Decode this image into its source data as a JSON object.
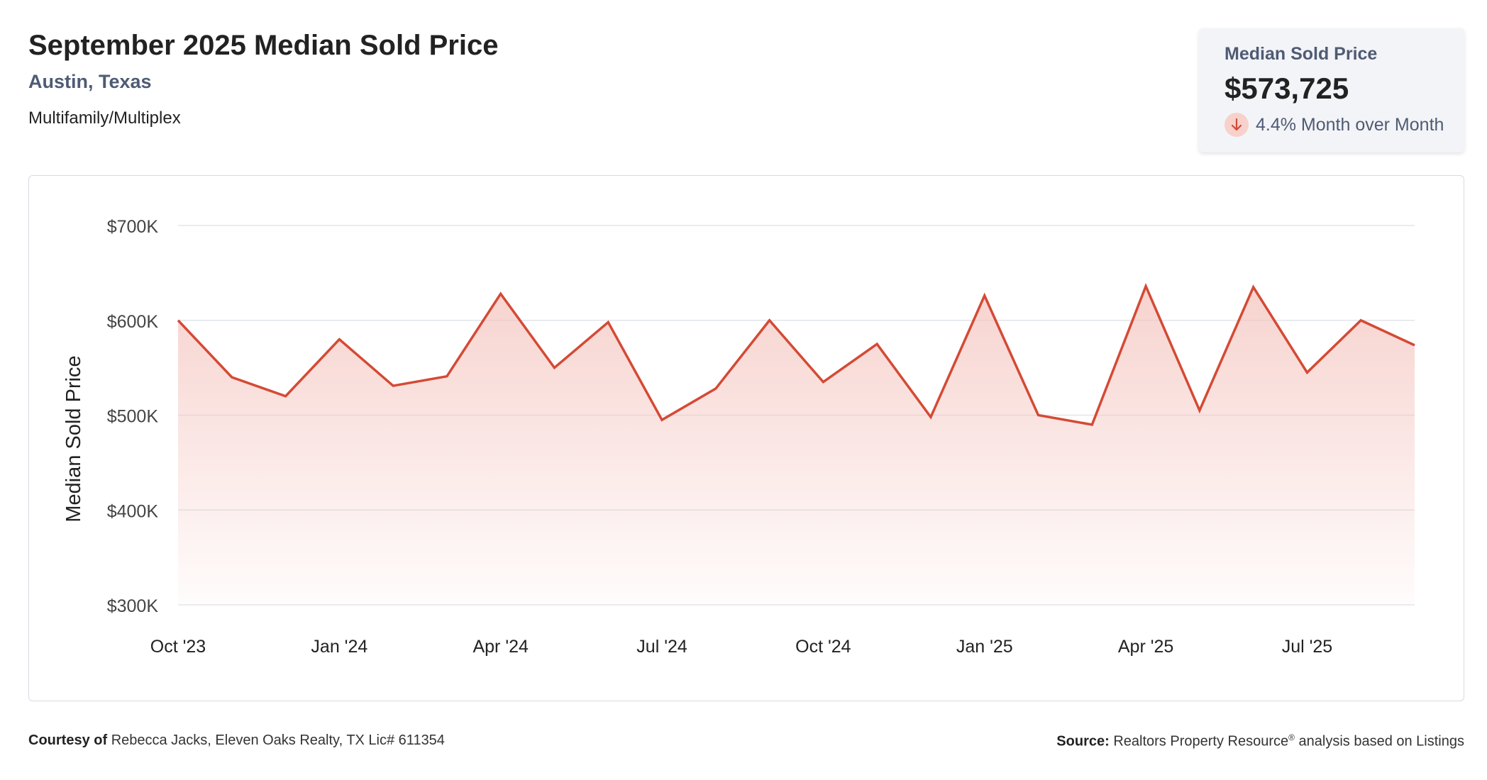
{
  "header": {
    "title": "September 2025 Median Sold Price",
    "location": "Austin, Texas",
    "category": "Multifamily/Multiplex"
  },
  "stat": {
    "label": "Median Sold Price",
    "value": "$573,725",
    "change": "4.4% Month over Month",
    "direction": "down",
    "icon": "arrow-down-icon"
  },
  "colors": {
    "line": "#d44a35",
    "fill": "#f7d6d2",
    "badge": "#f7d1cc",
    "label": "#4f5b74"
  },
  "chart_data": {
    "type": "area",
    "title": "",
    "xlabel": "",
    "ylabel": "Median Sold Price",
    "ylim": [
      300000,
      700000
    ],
    "yticks": [
      700000,
      600000,
      500000,
      400000,
      300000
    ],
    "ytick_labels": [
      "$700K",
      "$600K",
      "$500K",
      "$400K",
      "$300K"
    ],
    "xtick_labels": [
      "Oct '23",
      "Jan '24",
      "Apr '24",
      "Jul '24",
      "Oct '24",
      "Jan '25",
      "Apr '25",
      "Jul '25"
    ],
    "grid": true,
    "series": [
      {
        "x": [
          "Oct '23",
          "Nov '23",
          "Dec '23",
          "Jan '24",
          "Feb '24",
          "Mar '24",
          "Apr '24",
          "May '24",
          "Jun '24",
          "Jul '24",
          "Aug '24",
          "Sep '24",
          "Oct '24",
          "Nov '24",
          "Dec '24",
          "Jan '25",
          "Feb '25",
          "Mar '25",
          "Apr '25",
          "May '25",
          "Jun '25",
          "Jul '25",
          "Aug '25",
          "Sep '25"
        ],
        "values": [
          600000,
          540000,
          520000,
          580000,
          531000,
          541000,
          628000,
          550000,
          598000,
          495000,
          528000,
          600000,
          535000,
          575000,
          498000,
          626000,
          500000,
          490000,
          636000,
          505000,
          635000,
          545000,
          600000,
          573725
        ]
      }
    ]
  },
  "footer": {
    "courtesy_label": "Courtesy of",
    "courtesy_text": "Rebecca Jacks, Eleven Oaks Realty, TX Lic# 611354",
    "source_label": "Source:",
    "source_text_1": "Realtors Property Resource",
    "source_reg": "®",
    "source_text_2": "analysis based on Listings"
  }
}
